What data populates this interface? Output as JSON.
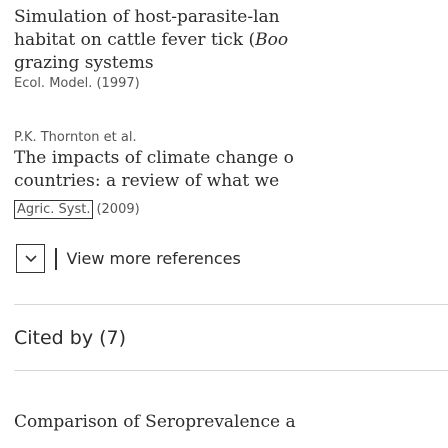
{
  "references": [
    {
      "title_lines": [
        "Simulation of host-parasite-lan",
        "habitat on cattle fever tick (Boo",
        "grazing systems"
      ],
      "source": "Ecol. Model. (1997)"
    },
    {
      "authors": "P.K. Thornton et al.",
      "title_lines": [
        "The impacts of climate change o",
        "countries: a review of what we"
      ],
      "journal": "Agric. Syst.",
      "year": "(2009)"
    }
  ],
  "view_more": {
    "label": "View more references",
    "icon": "chevron-down-icon"
  },
  "cited_by": {
    "heading": "Cited by (7)",
    "first_title": "Comparison of Seroprevalence a"
  }
}
